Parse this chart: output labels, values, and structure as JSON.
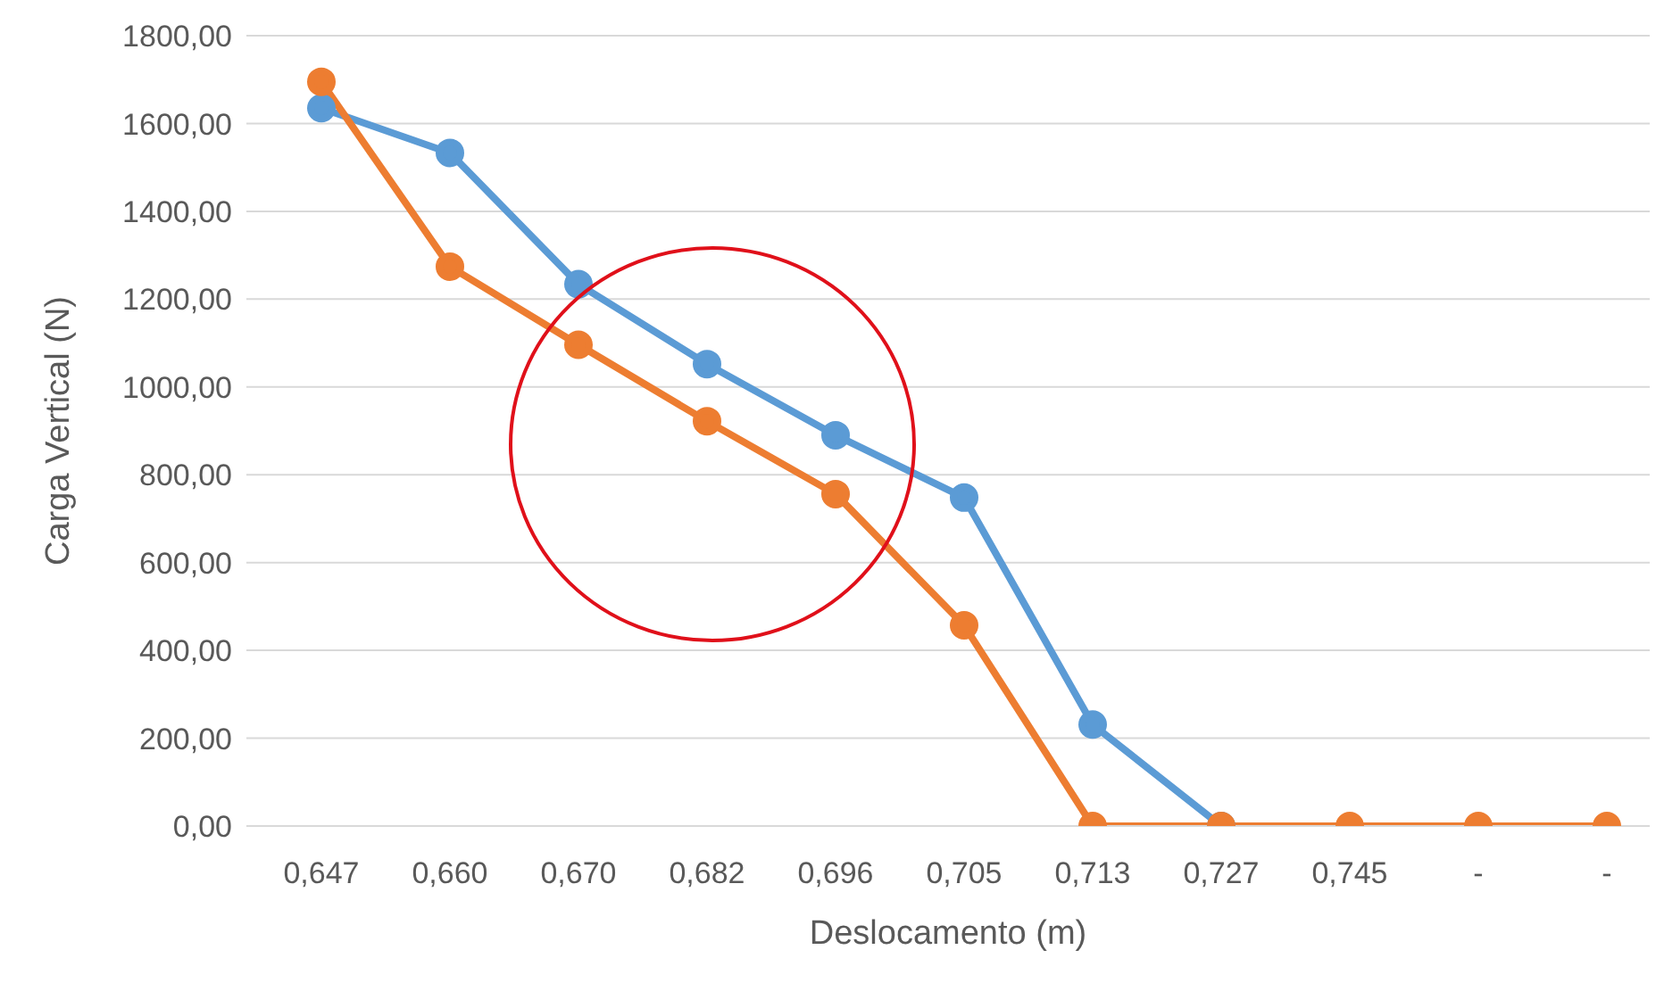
{
  "chart_data": {
    "type": "line",
    "xlabel": "Deslocamento (m)",
    "ylabel": "Carga Vertical (N)",
    "categories": [
      "0,647",
      "0,660",
      "0,670",
      "0,682",
      "0,696",
      "0,705",
      "0,713",
      "0,727",
      "0,745",
      "-",
      "-"
    ],
    "series": [
      {
        "color": "#5b9bd5",
        "values": [
          1635,
          1533,
          1234,
          1052,
          890,
          748,
          231,
          0,
          null,
          null,
          null
        ]
      },
      {
        "color": "#ed7d31",
        "values": [
          1695,
          1274,
          1096,
          922,
          756,
          457,
          0,
          0,
          0,
          0,
          0
        ]
      }
    ],
    "ylim": [
      0,
      1800
    ],
    "yticks": [
      {
        "value": 0,
        "label": "0,00"
      },
      {
        "value": 200,
        "label": "200,00"
      },
      {
        "value": 400,
        "label": "400,00"
      },
      {
        "value": 600,
        "label": "600,00"
      },
      {
        "value": 800,
        "label": "800,00"
      },
      {
        "value": 1000,
        "label": "1000,00"
      },
      {
        "value": 1200,
        "label": "1200,00"
      },
      {
        "value": 1400,
        "label": "1400,00"
      },
      {
        "value": 1600,
        "label": "1600,00"
      },
      {
        "value": 1800,
        "label": "1800,00"
      }
    ],
    "grid": "y",
    "marker": "circle",
    "line_style": "solid"
  }
}
